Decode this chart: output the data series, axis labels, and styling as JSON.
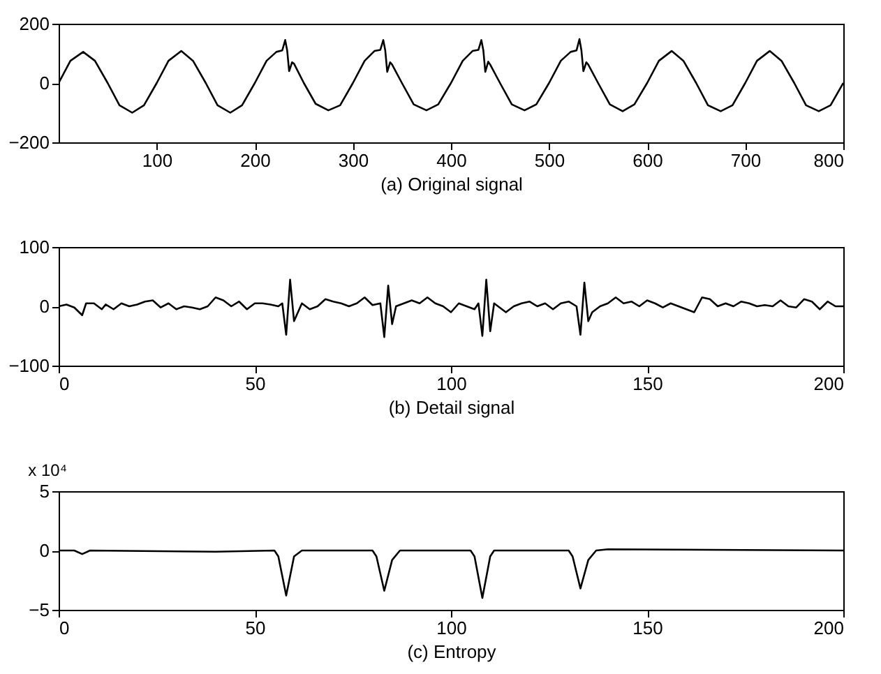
{
  "chart_data": [
    {
      "type": "line",
      "xlabel": "(a) Original signal",
      "xlim": [
        0,
        800
      ],
      "xticks": [
        100,
        200,
        300,
        400,
        500,
        600,
        700,
        800
      ],
      "ylim": [
        -200,
        200
      ],
      "yticks": [
        -200,
        0,
        200
      ],
      "grid": false,
      "x": [
        0,
        12,
        25,
        37,
        50,
        62,
        75,
        87,
        100,
        112,
        125,
        137,
        150,
        162,
        175,
        187,
        200,
        212,
        222,
        228,
        231,
        233,
        235,
        238,
        240,
        250,
        262,
        275,
        287,
        300,
        312,
        322,
        328,
        331,
        333,
        335,
        338,
        340,
        350,
        362,
        375,
        387,
        400,
        412,
        422,
        428,
        431,
        433,
        435,
        438,
        440,
        450,
        462,
        475,
        487,
        500,
        512,
        522,
        528,
        531,
        533,
        535,
        538,
        540,
        550,
        562,
        575,
        587,
        600,
        612,
        625,
        637,
        650,
        662,
        675,
        687,
        700,
        712,
        725,
        737,
        750,
        762,
        775,
        787,
        800
      ],
      "series": [
        {
          "color": "#000000",
          "values": [
            0,
            75,
            105,
            75,
            0,
            -75,
            -100,
            -75,
            0,
            75,
            108,
            75,
            0,
            -75,
            -100,
            -75,
            0,
            75,
            105,
            110,
            145,
            110,
            40,
            70,
            65,
            0,
            -70,
            -92,
            -75,
            0,
            75,
            108,
            112,
            145,
            110,
            38,
            70,
            62,
            0,
            -72,
            -92,
            -72,
            0,
            75,
            108,
            112,
            145,
            110,
            38,
            72,
            62,
            0,
            -72,
            -92,
            -72,
            0,
            75,
            105,
            110,
            148,
            110,
            40,
            70,
            62,
            0,
            -72,
            -95,
            -72,
            0,
            75,
            108,
            75,
            0,
            -75,
            -95,
            -75,
            0,
            75,
            108,
            75,
            0,
            -75,
            -95,
            -75,
            0
          ]
        }
      ]
    },
    {
      "type": "line",
      "xlabel": "(b) Detail signal",
      "xlim": [
        0,
        200
      ],
      "xticks": [
        0,
        50,
        100,
        150,
        200
      ],
      "ylim": [
        -100,
        100
      ],
      "yticks": [
        -100,
        0,
        100
      ],
      "grid": false,
      "x": [
        0,
        2,
        4,
        6,
        7,
        9,
        11,
        12,
        14,
        16,
        18,
        20,
        22,
        24,
        26,
        28,
        30,
        32,
        34,
        36,
        38,
        40,
        42,
        44,
        46,
        48,
        50,
        52,
        54,
        56,
        57,
        58,
        59,
        60,
        62,
        64,
        66,
        68,
        70,
        72,
        74,
        76,
        78,
        80,
        82,
        83,
        84,
        85,
        86,
        88,
        90,
        92,
        94,
        96,
        98,
        100,
        102,
        104,
        106,
        107,
        108,
        109,
        110,
        111,
        112,
        114,
        116,
        118,
        120,
        122,
        124,
        126,
        128,
        130,
        132,
        133,
        134,
        135,
        136,
        138,
        140,
        142,
        144,
        146,
        148,
        150,
        152,
        154,
        156,
        158,
        160,
        162,
        164,
        166,
        168,
        170,
        172,
        174,
        176,
        178,
        180,
        182,
        184,
        186,
        188,
        190,
        192,
        194,
        196,
        198,
        200
      ],
      "series": [
        {
          "color": "#000000",
          "values": [
            0,
            3,
            -2,
            -15,
            5,
            5,
            -5,
            3,
            -5,
            5,
            0,
            3,
            8,
            10,
            -2,
            5,
            -5,
            0,
            -2,
            -5,
            0,
            15,
            10,
            0,
            8,
            -5,
            5,
            5,
            3,
            0,
            5,
            -48,
            45,
            -25,
            5,
            -5,
            0,
            12,
            8,
            5,
            0,
            5,
            15,
            2,
            5,
            -52,
            35,
            -30,
            0,
            5,
            10,
            5,
            15,
            5,
            0,
            -10,
            5,
            0,
            -5,
            5,
            -50,
            45,
            -42,
            5,
            0,
            -10,
            0,
            5,
            8,
            0,
            5,
            -5,
            5,
            8,
            0,
            -48,
            40,
            -25,
            -10,
            0,
            5,
            15,
            5,
            8,
            0,
            10,
            5,
            -2,
            5,
            0,
            -5,
            -10,
            15,
            12,
            0,
            5,
            0,
            8,
            5,
            0,
            2,
            0,
            10,
            0,
            -2,
            12,
            8,
            -5,
            8,
            0,
            0
          ]
        }
      ]
    },
    {
      "type": "line",
      "xlabel": "(c) Entropy",
      "annotations": [
        "x 10⁴"
      ],
      "xlim": [
        0,
        200
      ],
      "xticks": [
        0,
        50,
        100,
        150,
        200
      ],
      "ylim": [
        -5,
        5
      ],
      "yticks": [
        -5,
        0,
        5
      ],
      "grid": false,
      "x": [
        0,
        4,
        6,
        8,
        40,
        55,
        56,
        58,
        60,
        62,
        80,
        81,
        83,
        85,
        87,
        105,
        106,
        108,
        110,
        111,
        130,
        131,
        133,
        135,
        137,
        140,
        200
      ],
      "series": [
        {
          "color": "#000000",
          "values": [
            0,
            0,
            -0.3,
            0,
            -0.1,
            0,
            -0.5,
            -3.8,
            -0.5,
            0,
            0,
            -0.5,
            -3.4,
            -0.8,
            0,
            0,
            -0.5,
            -4,
            -0.5,
            0,
            0,
            -0.5,
            -3.2,
            -0.8,
            0,
            0.1,
            0
          ]
        }
      ]
    }
  ]
}
